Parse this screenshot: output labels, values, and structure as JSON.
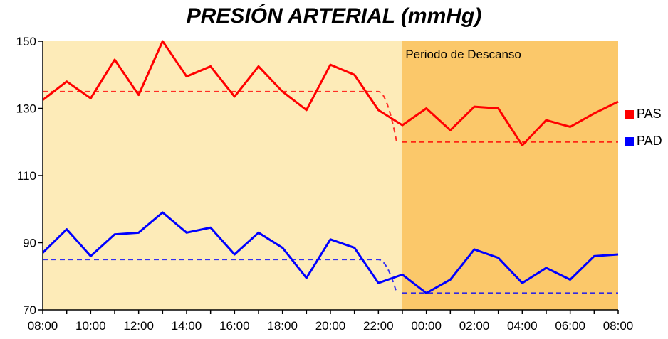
{
  "chart_data": {
    "type": "line",
    "title": "PRESIÓN ARTERIAL (mmHg)",
    "xlabel": "",
    "ylabel": "",
    "x": [
      "08:00",
      "09:00",
      "10:00",
      "11:00",
      "12:00",
      "13:00",
      "14:00",
      "15:00",
      "16:00",
      "17:00",
      "18:00",
      "19:00",
      "20:00",
      "21:00",
      "22:00",
      "23:00",
      "00:00",
      "01:00",
      "02:00",
      "03:00",
      "04:00",
      "05:00",
      "06:00",
      "07:00",
      "08:00"
    ],
    "x_tick_labels": [
      "08:00",
      "10:00",
      "12:00",
      "14:00",
      "16:00",
      "18:00",
      "20:00",
      "22:00",
      "00:00",
      "02:00",
      "04:00",
      "06:00",
      "08:00"
    ],
    "y_ticks": [
      "70",
      "90",
      "110",
      "130",
      "150"
    ],
    "ylim": [
      70,
      150
    ],
    "grid": false,
    "legend_position": "right",
    "colors": {
      "pas": "#ff0000",
      "pad": "#0000ff",
      "day_band": "#fdebb8",
      "rest_band": "#fbc86a",
      "rest_label": "#8a6a2a"
    },
    "series": [
      {
        "name": "PAS",
        "color": "#ff0000",
        "values": [
          132.5,
          138,
          133,
          144.5,
          134,
          150,
          139.5,
          142.5,
          133.5,
          142.5,
          135,
          129.5,
          143,
          140,
          129.5,
          125,
          130,
          123.5,
          130.5,
          130,
          119,
          126.5,
          124.5,
          128.5,
          132
        ]
      },
      {
        "name": "PAD",
        "color": "#0000ff",
        "values": [
          87,
          94,
          86,
          92.5,
          93,
          99,
          93,
          94.5,
          86.5,
          93,
          88.5,
          79.5,
          91,
          88.5,
          78,
          80.5,
          75,
          79,
          88,
          85.5,
          78,
          82.5,
          79,
          86,
          86.5
        ]
      }
    ],
    "reference_lines": [
      {
        "series": "PAS",
        "segments": [
          {
            "x0": 0,
            "x1": 14,
            "y": 135
          },
          {
            "x0": 15,
            "x1": 24,
            "y": 120
          }
        ]
      },
      {
        "series": "PAD",
        "segments": [
          {
            "x0": 0,
            "x1": 14,
            "y": 85
          },
          {
            "x0": 15,
            "x1": 24,
            "y": 75
          }
        ]
      }
    ],
    "rest_period": {
      "label": "Periodo de Descanso",
      "start_index": 15,
      "end_index": 24
    }
  }
}
